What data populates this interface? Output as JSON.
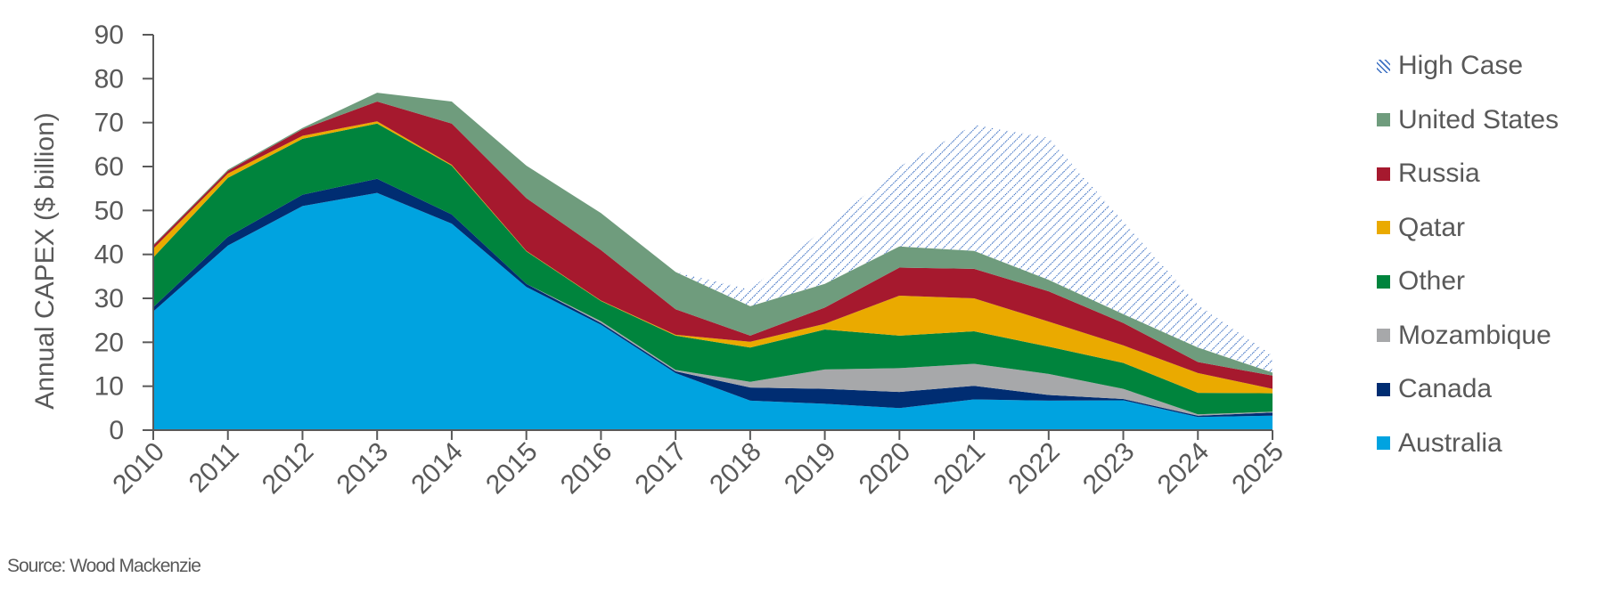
{
  "chart_data": {
    "type": "area",
    "stacked": true,
    "title": "",
    "xlabel": "",
    "ylabel": "Annual CAPEX ($ billion)",
    "ylim": [
      0,
      90
    ],
    "yticks": [
      0,
      10,
      20,
      30,
      40,
      50,
      60,
      70,
      80,
      90
    ],
    "categories": [
      "2010",
      "2011",
      "2012",
      "2013",
      "2014",
      "2015",
      "2016",
      "2017",
      "2018",
      "2019",
      "2020",
      "2021",
      "2022",
      "2023",
      "2024",
      "2025"
    ],
    "grid": false,
    "legend_position": "right",
    "series": [
      {
        "name": "Australia",
        "color": "#00A3E0",
        "values": [
          27,
          42,
          51,
          54,
          47,
          32.6,
          24,
          13,
          6.7,
          6,
          5,
          7,
          6.7,
          6.8,
          3,
          3.3
        ]
      },
      {
        "name": "Canada",
        "color": "#002D72",
        "values": [
          1,
          2,
          2.6,
          3.2,
          2.1,
          0.7,
          0.4,
          0.4,
          3,
          3.4,
          3.7,
          3.1,
          1.3,
          0.3,
          0.3,
          0.7
        ]
      },
      {
        "name": "Mozambique",
        "color": "#A7A8AA",
        "values": [
          0,
          0,
          0,
          0,
          0,
          0,
          0.4,
          0.3,
          1.3,
          4.4,
          5.4,
          5,
          4.8,
          2.3,
          0.3,
          0.2
        ]
      },
      {
        "name": "Other",
        "color": "#00843D",
        "values": [
          11.3,
          13.4,
          12.7,
          12.6,
          11.1,
          7.4,
          4.6,
          7.8,
          7.8,
          9.1,
          7.4,
          7.4,
          6.2,
          5.9,
          4.9,
          4.2
        ]
      },
      {
        "name": "Qatar",
        "color": "#EAAA00",
        "values": [
          2,
          1,
          0.7,
          0.5,
          0.2,
          0.1,
          0.1,
          0.2,
          1.3,
          1.3,
          9.1,
          7.5,
          5.7,
          4,
          4.5,
          1
        ]
      },
      {
        "name": "Russia",
        "color": "#A6192E",
        "values": [
          0.7,
          0.6,
          1.5,
          4.5,
          9.4,
          12,
          11.5,
          5.8,
          1.4,
          3.7,
          6.4,
          6.7,
          6.9,
          5.1,
          2.5,
          3
        ]
      },
      {
        "name": "United States",
        "color": "#6F9C7D",
        "values": [
          0.2,
          0.3,
          0.3,
          2,
          5,
          7.4,
          8.4,
          8.5,
          6.7,
          5.4,
          4.8,
          4.1,
          2.6,
          2,
          3.3,
          0.7
        ]
      }
    ],
    "high_case": {
      "name": "High Case",
      "color": "#3B6FC2",
      "pattern": "hatch",
      "total_values": [
        null,
        null,
        null,
        null,
        null,
        null,
        null,
        36,
        32,
        46,
        60,
        69.5,
        66.5,
        47.5,
        28.5,
        17
      ]
    },
    "legend": [
      "High Case",
      "United States",
      "Russia",
      "Qatar",
      "Other",
      "Mozambique",
      "Canada",
      "Australia"
    ],
    "source": "Source: Wood Mackenzie"
  }
}
